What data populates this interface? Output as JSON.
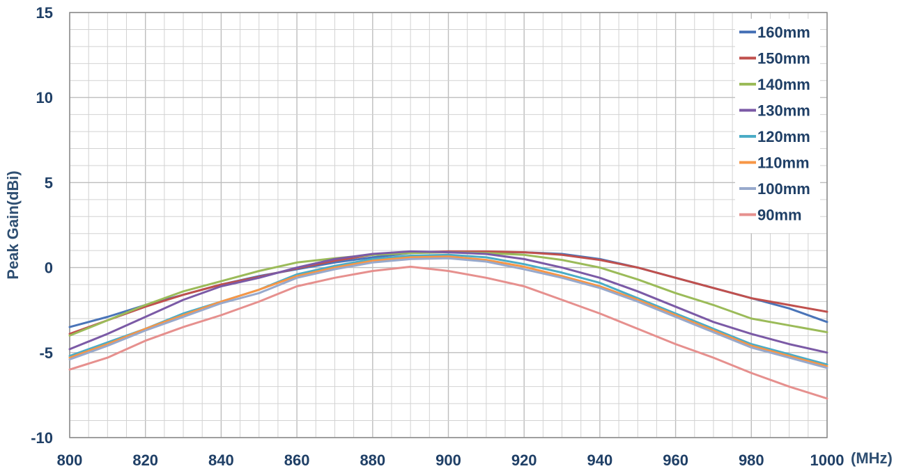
{
  "chart_data": {
    "type": "line",
    "title": "",
    "xlabel": "",
    "ylabel": "Peak Gain(dBi)",
    "xunit": "(MHz)",
    "xlim": [
      800,
      1000
    ],
    "ylim": [
      -10,
      15
    ],
    "x_major_ticks": [
      800,
      820,
      840,
      860,
      880,
      900,
      920,
      940,
      960,
      980,
      1000
    ],
    "y_major_ticks": [
      15,
      10,
      5,
      0,
      -5,
      -10
    ],
    "grid": true,
    "legend_position": "top-right",
    "x": [
      800,
      810,
      820,
      830,
      840,
      850,
      860,
      870,
      880,
      890,
      900,
      910,
      920,
      930,
      940,
      950,
      960,
      970,
      980,
      990,
      1000
    ],
    "series": [
      {
        "name": "160mm",
        "color": "#4a74b8",
        "values": [
          -3.5,
          -2.9,
          -2.2,
          -1.6,
          -1.0,
          -0.5,
          -0.1,
          0.3,
          0.6,
          0.85,
          0.95,
          0.9,
          0.9,
          0.8,
          0.5,
          0.0,
          -0.6,
          -1.2,
          -1.8,
          -2.4,
          -3.2
        ]
      },
      {
        "name": "150mm",
        "color": "#c0504d",
        "values": [
          -3.9,
          -3.1,
          -2.3,
          -1.6,
          -1.0,
          -0.55,
          -0.05,
          0.4,
          0.75,
          0.9,
          0.95,
          0.95,
          0.9,
          0.75,
          0.45,
          0.0,
          -0.6,
          -1.2,
          -1.8,
          -2.2,
          -2.6
        ]
      },
      {
        "name": "140mm",
        "color": "#9bbb59",
        "values": [
          -4.0,
          -3.1,
          -2.2,
          -1.4,
          -0.8,
          -0.2,
          0.3,
          0.55,
          0.75,
          0.85,
          0.9,
          0.85,
          0.75,
          0.45,
          0.0,
          -0.7,
          -1.5,
          -2.2,
          -3.0,
          -3.4,
          -3.8
        ]
      },
      {
        "name": "130mm",
        "color": "#7b5aa6",
        "values": [
          -4.8,
          -3.9,
          -2.9,
          -1.9,
          -1.1,
          -0.6,
          0.0,
          0.5,
          0.8,
          0.95,
          0.9,
          0.8,
          0.5,
          0.0,
          -0.6,
          -1.4,
          -2.3,
          -3.2,
          -3.9,
          -4.5,
          -5.0
        ]
      },
      {
        "name": "120mm",
        "color": "#4bacc6",
        "values": [
          -5.2,
          -4.4,
          -3.6,
          -2.7,
          -2.0,
          -1.3,
          -0.4,
          0.1,
          0.5,
          0.7,
          0.75,
          0.6,
          0.2,
          -0.3,
          -0.9,
          -1.8,
          -2.7,
          -3.6,
          -4.5,
          -5.1,
          -5.7
        ]
      },
      {
        "name": "110mm",
        "color": "#f79646",
        "values": [
          -5.3,
          -4.5,
          -3.6,
          -2.8,
          -2.0,
          -1.3,
          -0.5,
          0.0,
          0.4,
          0.6,
          0.65,
          0.45,
          0.05,
          -0.5,
          -1.1,
          -1.9,
          -2.8,
          -3.7,
          -4.6,
          -5.2,
          -5.8
        ]
      },
      {
        "name": "100mm",
        "color": "#98a9cc",
        "values": [
          -5.4,
          -4.6,
          -3.7,
          -2.9,
          -2.1,
          -1.5,
          -0.6,
          -0.1,
          0.3,
          0.5,
          0.55,
          0.35,
          -0.1,
          -0.6,
          -1.2,
          -2.0,
          -2.9,
          -3.8,
          -4.7,
          -5.3,
          -5.9
        ]
      },
      {
        "name": "90mm",
        "color": "#e6908e",
        "values": [
          -6.0,
          -5.3,
          -4.3,
          -3.5,
          -2.8,
          -2.0,
          -1.1,
          -0.6,
          -0.2,
          0.05,
          -0.2,
          -0.6,
          -1.1,
          -1.9,
          -2.7,
          -3.6,
          -4.5,
          -5.3,
          -6.2,
          -7.0,
          -7.7
        ]
      }
    ]
  }
}
